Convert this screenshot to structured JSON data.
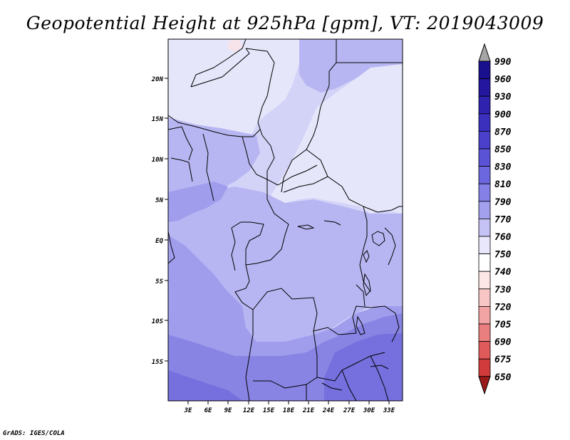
{
  "title": "Geopotential Height at 925hPa [gpm], VT: 2019043009",
  "credit": "GrADS: IGES/COLA",
  "map": {
    "lat_labels": [
      "20N",
      "15N",
      "10N",
      "5N",
      "EQ",
      "5S",
      "10S",
      "15S"
    ],
    "lon_labels": [
      "3E",
      "6E",
      "9E",
      "12E",
      "15E",
      "18E",
      "21E",
      "24E",
      "27E",
      "30E",
      "33E"
    ]
  },
  "colorbar": {
    "labels": [
      "990",
      "960",
      "930",
      "900",
      "870",
      "850",
      "830",
      "810",
      "790",
      "770",
      "760",
      "750",
      "740",
      "730",
      "720",
      "705",
      "690",
      "675",
      "650"
    ],
    "colors": {
      "top_arrow": "#a6a6a6",
      "bottom_arrow": "#9a1a1a",
      "segments": [
        "#1a0f8c",
        "#24169e",
        "#2e22ae",
        "#3b30be",
        "#4a40cb",
        "#5b53d6",
        "#6d67df",
        "#8580e6",
        "#a3a0ee",
        "#c5c3f5",
        "#e8e7fc",
        "#ffffff",
        "#fde6e6",
        "#f9c6c6",
        "#f2a3a3",
        "#ea7f7f",
        "#df5a5a",
        "#d13b3b",
        "#b92525",
        "#a01616"
      ]
    }
  },
  "field_colors": {
    "lightest": "#e6e6fb",
    "light": "#d3d3f8",
    "mid_light": "#b8b6f2",
    "mid": "#a09ded",
    "deep": "#8884e4",
    "deepest": "#7570dd",
    "pinkish": "#f6e4ea"
  }
}
